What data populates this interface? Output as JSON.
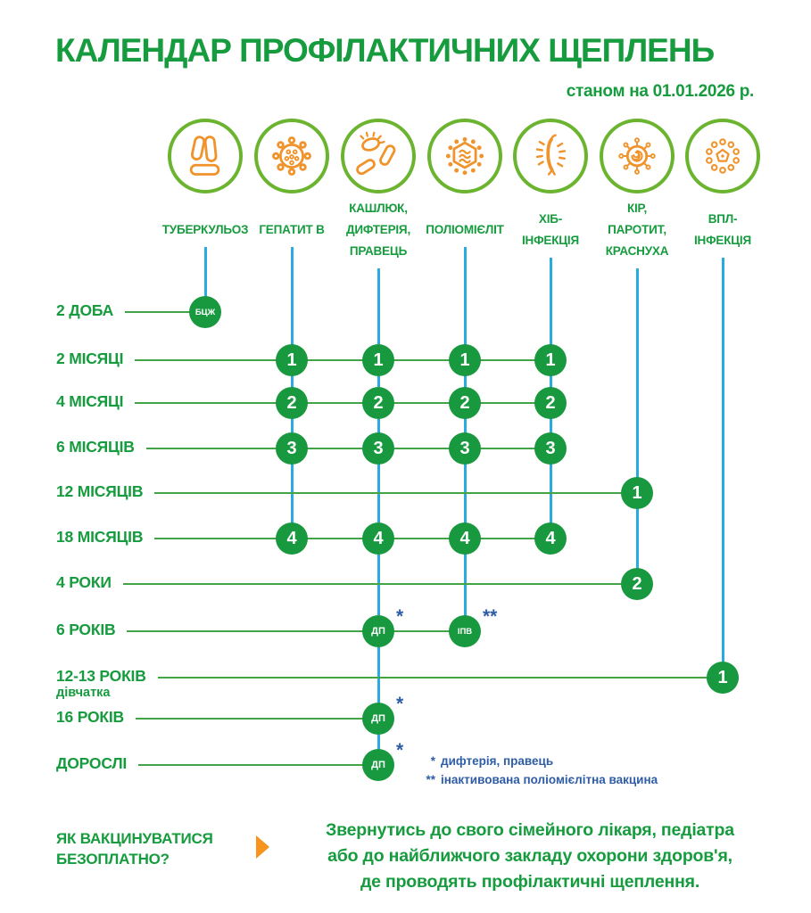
{
  "header": {
    "title": "КАЛЕНДАР ПРОФІЛАКТИЧНИХ ЩЕПЛЕНЬ",
    "subtitle": "станом на 01.01.2026 р."
  },
  "colors": {
    "green": "#169C3E",
    "circle": "#18993F",
    "hline": "#43A447",
    "vline": "#29ABE2",
    "blue": "#2E5CA6",
    "orange": "#F0932B",
    "ring": "#6BB42F",
    "arrow": "#F7941D"
  },
  "columns": [
    {
      "icon": "tuberculosis-icon",
      "label_lines": [
        "ТУБЕРКУЛЬОЗ"
      ]
    },
    {
      "icon": "hepatitis-b-icon",
      "label_lines": [
        "ГЕПАТИТ В"
      ]
    },
    {
      "icon": "pertussis-diphtheria-tetanus-icon",
      "label_lines": [
        "КАШЛЮК,",
        "ДИФТЕРІЯ,",
        "ПРАВЕЦЬ"
      ]
    },
    {
      "icon": "polio-icon",
      "label_lines": [
        "ПОЛІОМІЄЛІТ"
      ]
    },
    {
      "icon": "hib-icon",
      "label_lines": [
        "ХІБ-",
        "ІНФЕКЦІЯ"
      ]
    },
    {
      "icon": "measles-mumps-rubella-icon",
      "label_lines": [
        "КІР,",
        "ПАРОТИТ,",
        "КРАСНУХА"
      ]
    },
    {
      "icon": "hpv-icon",
      "label_lines": [
        "ВПЛ-",
        "ІНФЕКЦІЯ"
      ]
    }
  ],
  "rows": [
    {
      "label": "2 ДОБА",
      "doses": [
        {
          "col": 0,
          "text": "БЦЖ",
          "small": true
        }
      ]
    },
    {
      "label": "2 МІСЯЦІ",
      "doses": [
        {
          "col": 1,
          "text": "1"
        },
        {
          "col": 2,
          "text": "1"
        },
        {
          "col": 3,
          "text": "1"
        },
        {
          "col": 4,
          "text": "1"
        }
      ]
    },
    {
      "label": "4 МІСЯЦІ",
      "doses": [
        {
          "col": 1,
          "text": "2"
        },
        {
          "col": 2,
          "text": "2"
        },
        {
          "col": 3,
          "text": "2"
        },
        {
          "col": 4,
          "text": "2"
        }
      ]
    },
    {
      "label": "6 МІСЯЦІВ",
      "doses": [
        {
          "col": 1,
          "text": "3"
        },
        {
          "col": 2,
          "text": "3"
        },
        {
          "col": 3,
          "text": "3"
        },
        {
          "col": 4,
          "text": "3"
        }
      ]
    },
    {
      "label": "12 МІСЯЦІВ",
      "doses": [
        {
          "col": 5,
          "text": "1"
        }
      ]
    },
    {
      "label": "18 МІСЯЦІВ",
      "doses": [
        {
          "col": 1,
          "text": "4"
        },
        {
          "col": 2,
          "text": "4"
        },
        {
          "col": 3,
          "text": "4"
        },
        {
          "col": 4,
          "text": "4"
        }
      ]
    },
    {
      "label": "4 РОКИ",
      "doses": [
        {
          "col": 5,
          "text": "2"
        }
      ]
    },
    {
      "label": "6 РОКІВ",
      "doses": [
        {
          "col": 2,
          "text": "ДП",
          "small": true,
          "marker": "*"
        },
        {
          "col": 3,
          "text": "ІПВ",
          "small": true,
          "marker": "**"
        }
      ]
    },
    {
      "label": "12-13 РОКІВ",
      "sublabel": "дівчатка",
      "doses": [
        {
          "col": 6,
          "text": "1"
        }
      ]
    },
    {
      "label": "16 РОКІВ",
      "doses": [
        {
          "col": 2,
          "text": "ДП",
          "small": true,
          "marker": "*"
        }
      ]
    },
    {
      "label": "ДОРОСЛІ",
      "doses": [
        {
          "col": 2,
          "text": "ДП",
          "small": true,
          "marker": "*"
        }
      ]
    }
  ],
  "footnotes": [
    {
      "marker": "*",
      "text": "дифтерія, правець"
    },
    {
      "marker": "**",
      "text": "інактивована поліомієлітна вакцина"
    }
  ],
  "cta": {
    "question_lines": [
      "ЯК ВАКЦИНУВАТИСЯ",
      "БЕЗОПЛАТНО?"
    ],
    "text_lines": [
      "Звернутись до свого сімейного лікаря, педіатра",
      "або до найближчого закладу охорони здоров'я,",
      "де проводять профілактичні щеплення."
    ]
  }
}
